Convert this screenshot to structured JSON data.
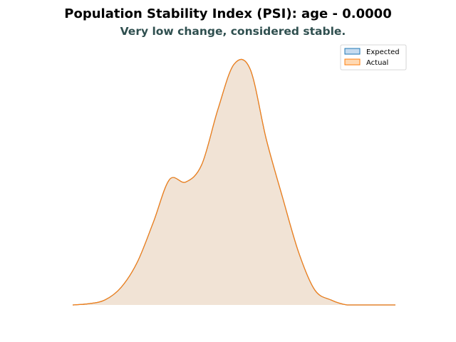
{
  "chart_data": {
    "type": "area",
    "title": "Population Stability Index (PSI): age - 0.0000",
    "subtitle": "Very low change, considered stable.",
    "xlabel": "",
    "ylabel": "",
    "axes_visible": false,
    "grid": false,
    "legend_position": "top-right",
    "x": [
      0,
      5,
      10,
      15,
      20,
      25,
      30,
      35,
      40,
      45,
      50,
      55,
      60,
      65,
      70,
      75,
      80,
      85,
      90,
      95,
      100
    ],
    "ylim": [
      0,
      1
    ],
    "series": [
      {
        "name": "Expected",
        "edge_color": "#1f77b4",
        "fill_color": "#c6dbef",
        "values": [
          0.0,
          0.005,
          0.02,
          0.07,
          0.17,
          0.33,
          0.5,
          0.49,
          0.56,
          0.78,
          0.96,
          0.94,
          0.66,
          0.43,
          0.21,
          0.06,
          0.02,
          0.0,
          0.0,
          0.0,
          0.0
        ]
      },
      {
        "name": "Actual",
        "edge_color": "#ff7f0e",
        "fill_color": "#ffd9b3",
        "values": [
          0.0,
          0.005,
          0.02,
          0.07,
          0.17,
          0.33,
          0.5,
          0.49,
          0.56,
          0.78,
          0.96,
          0.94,
          0.66,
          0.43,
          0.21,
          0.06,
          0.02,
          0.0,
          0.0,
          0.0,
          0.0
        ]
      }
    ]
  }
}
